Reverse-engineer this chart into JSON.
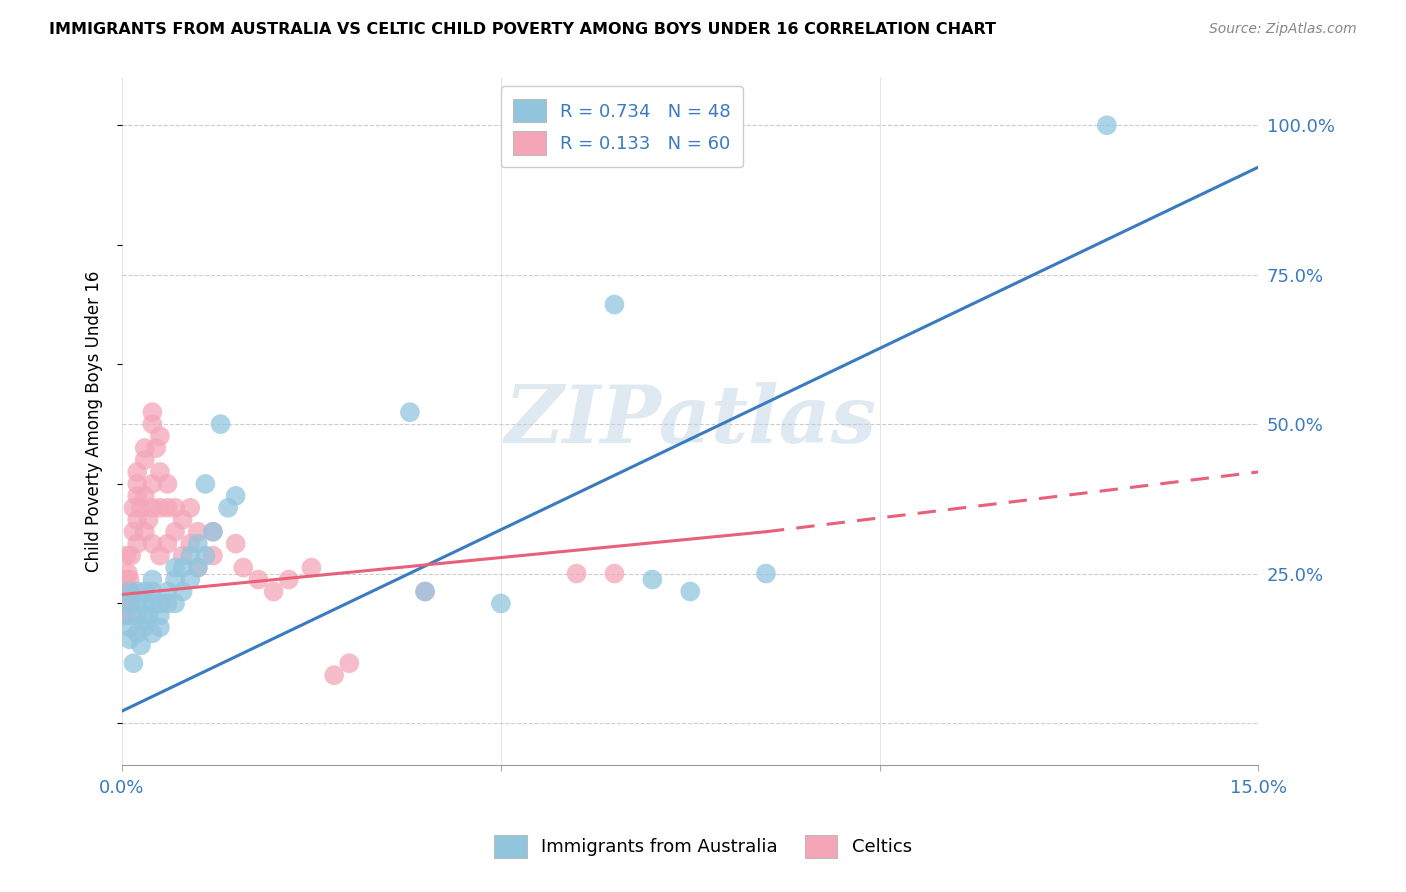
{
  "title": "IMMIGRANTS FROM AUSTRALIA VS CELTIC CHILD POVERTY AMONG BOYS UNDER 16 CORRELATION CHART",
  "source": "Source: ZipAtlas.com",
  "ylabel": "Child Poverty Among Boys Under 16",
  "ytick_vals": [
    0.0,
    0.25,
    0.5,
    0.75,
    1.0
  ],
  "ytick_labels": [
    "",
    "25.0%",
    "50.0%",
    "75.0%",
    "100.0%"
  ],
  "xtick_vals": [
    0.0,
    0.05,
    0.1,
    0.15
  ],
  "xtick_labels": [
    "0.0%",
    "",
    "",
    "15.0%"
  ],
  "xlim": [
    0.0,
    0.15
  ],
  "ylim": [
    -0.07,
    1.08
  ],
  "watermark": "ZIPatlas",
  "legend_label1": "R = 0.734   N = 48",
  "legend_label2": "R = 0.133   N = 60",
  "legend_label_bottom1": "Immigrants from Australia",
  "legend_label_bottom2": "Celtics",
  "color_blue": "#92c5de",
  "color_pink": "#f4a6b8",
  "line_color_blue": "#3a7bbf",
  "line_color_pink": "#e8607a",
  "australia_line": [
    [
      0.0,
      0.02
    ],
    [
      0.15,
      0.93
    ]
  ],
  "celtics_line_solid": [
    [
      0.0,
      0.215
    ],
    [
      0.085,
      0.32
    ]
  ],
  "celtics_line_dashed": [
    [
      0.085,
      0.32
    ],
    [
      0.15,
      0.42
    ]
  ],
  "australia_scatter": [
    [
      0.0005,
      0.18
    ],
    [
      0.001,
      0.14
    ],
    [
      0.001,
      0.2
    ],
    [
      0.001,
      0.22
    ],
    [
      0.001,
      0.16
    ],
    [
      0.0015,
      0.1
    ],
    [
      0.002,
      0.15
    ],
    [
      0.002,
      0.18
    ],
    [
      0.002,
      0.22
    ],
    [
      0.002,
      0.2
    ],
    [
      0.0025,
      0.13
    ],
    [
      0.003,
      0.17
    ],
    [
      0.003,
      0.2
    ],
    [
      0.003,
      0.16
    ],
    [
      0.003,
      0.22
    ],
    [
      0.0035,
      0.18
    ],
    [
      0.004,
      0.15
    ],
    [
      0.004,
      0.2
    ],
    [
      0.004,
      0.24
    ],
    [
      0.004,
      0.22
    ],
    [
      0.005,
      0.18
    ],
    [
      0.005,
      0.2
    ],
    [
      0.005,
      0.16
    ],
    [
      0.006,
      0.22
    ],
    [
      0.006,
      0.2
    ],
    [
      0.007,
      0.24
    ],
    [
      0.007,
      0.2
    ],
    [
      0.007,
      0.26
    ],
    [
      0.008,
      0.22
    ],
    [
      0.008,
      0.26
    ],
    [
      0.009,
      0.24
    ],
    [
      0.009,
      0.28
    ],
    [
      0.01,
      0.26
    ],
    [
      0.01,
      0.3
    ],
    [
      0.011,
      0.28
    ],
    [
      0.011,
      0.4
    ],
    [
      0.012,
      0.32
    ],
    [
      0.013,
      0.5
    ],
    [
      0.014,
      0.36
    ],
    [
      0.015,
      0.38
    ],
    [
      0.038,
      0.52
    ],
    [
      0.04,
      0.22
    ],
    [
      0.05,
      0.2
    ],
    [
      0.065,
      0.7
    ],
    [
      0.07,
      0.24
    ],
    [
      0.075,
      0.22
    ],
    [
      0.085,
      0.25
    ],
    [
      0.13,
      1.0
    ]
  ],
  "celtics_scatter": [
    [
      0.0002,
      0.2
    ],
    [
      0.0003,
      0.18
    ],
    [
      0.0004,
      0.22
    ],
    [
      0.0005,
      0.24
    ],
    [
      0.0005,
      0.2
    ],
    [
      0.0006,
      0.28
    ],
    [
      0.0007,
      0.22
    ],
    [
      0.0008,
      0.25
    ],
    [
      0.001,
      0.24
    ],
    [
      0.001,
      0.2
    ],
    [
      0.001,
      0.22
    ],
    [
      0.001,
      0.18
    ],
    [
      0.0012,
      0.28
    ],
    [
      0.0015,
      0.36
    ],
    [
      0.0015,
      0.32
    ],
    [
      0.002,
      0.3
    ],
    [
      0.002,
      0.34
    ],
    [
      0.002,
      0.38
    ],
    [
      0.002,
      0.4
    ],
    [
      0.002,
      0.42
    ],
    [
      0.0025,
      0.36
    ],
    [
      0.003,
      0.32
    ],
    [
      0.003,
      0.38
    ],
    [
      0.003,
      0.44
    ],
    [
      0.003,
      0.46
    ],
    [
      0.0035,
      0.34
    ],
    [
      0.004,
      0.3
    ],
    [
      0.004,
      0.36
    ],
    [
      0.004,
      0.4
    ],
    [
      0.004,
      0.5
    ],
    [
      0.004,
      0.52
    ],
    [
      0.0045,
      0.46
    ],
    [
      0.005,
      0.28
    ],
    [
      0.005,
      0.36
    ],
    [
      0.005,
      0.42
    ],
    [
      0.005,
      0.48
    ],
    [
      0.006,
      0.3
    ],
    [
      0.006,
      0.36
    ],
    [
      0.006,
      0.4
    ],
    [
      0.007,
      0.32
    ],
    [
      0.007,
      0.36
    ],
    [
      0.008,
      0.28
    ],
    [
      0.008,
      0.34
    ],
    [
      0.009,
      0.3
    ],
    [
      0.009,
      0.36
    ],
    [
      0.01,
      0.26
    ],
    [
      0.01,
      0.32
    ],
    [
      0.012,
      0.28
    ],
    [
      0.012,
      0.32
    ],
    [
      0.015,
      0.3
    ],
    [
      0.016,
      0.26
    ],
    [
      0.018,
      0.24
    ],
    [
      0.02,
      0.22
    ],
    [
      0.022,
      0.24
    ],
    [
      0.025,
      0.26
    ],
    [
      0.028,
      0.08
    ],
    [
      0.03,
      0.1
    ],
    [
      0.04,
      0.22
    ],
    [
      0.06,
      0.25
    ],
    [
      0.065,
      0.25
    ]
  ]
}
